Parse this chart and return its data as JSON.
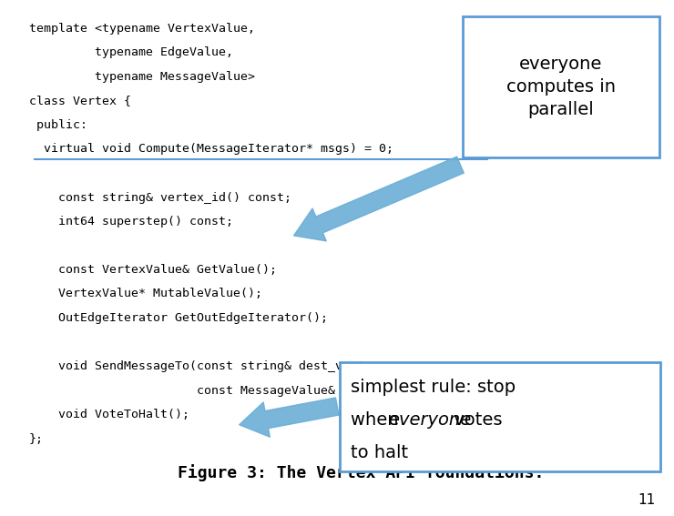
{
  "background_color": "#ffffff",
  "code_lines": [
    "template <typename VertexValue,",
    "         typename EdgeValue,",
    "         typename MessageValue>",
    "class Vertex {",
    " public:",
    "  virtual void Compute(MessageIterator* msgs) = 0;",
    "",
    "    const string& vertex_id() const;",
    "    int64 superstep() const;",
    "",
    "    const VertexValue& GetValue();",
    "    VertexValue* MutableValue();",
    "    OutEdgeIterator GetOutEdgeIterator();",
    "",
    "    void SendMessageTo(const string& dest_vertex,",
    "                       const MessageValue& message);",
    "    void VoteToHalt();",
    "};"
  ],
  "figure_caption": "Figure 3: The Vertex API foundations.",
  "callout1_text": "everyone\ncomputes in\nparallel",
  "callout2_line1": "simplest rule: stop",
  "callout2_line2_pre": "when ",
  "callout2_line2_italic": "everyone",
  "callout2_line2_post": " votes",
  "callout2_line3": "to halt",
  "page_number": "11",
  "code_font_size": 9.5,
  "callout_font_size": 14,
  "figure_caption_font_size": 13,
  "arrow_color": "#6baed6",
  "box_edge_color": "#5b9bd5",
  "code_color": "#000000",
  "page_num_fontsize": 11
}
